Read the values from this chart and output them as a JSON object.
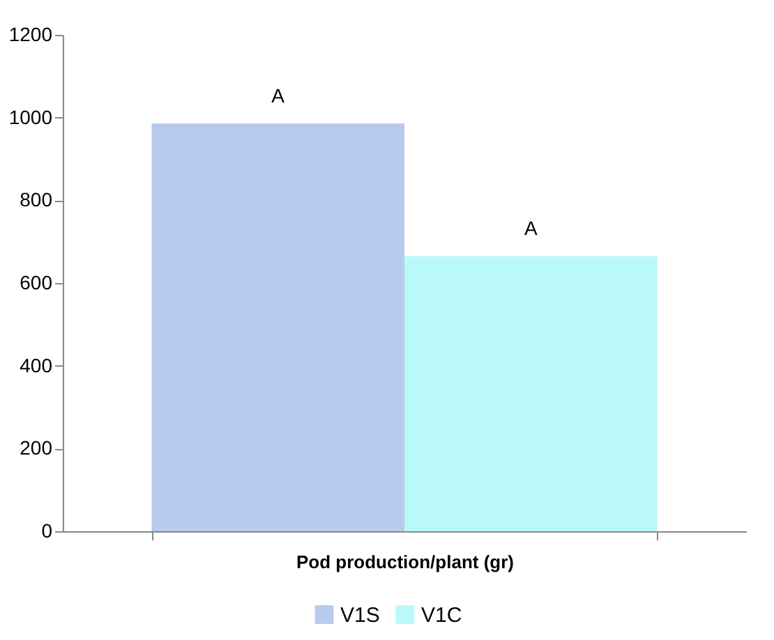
{
  "chart_data": {
    "type": "bar",
    "categories": [
      "Pod production/plant (gr)"
    ],
    "series": [
      {
        "name": "V1S",
        "color": "#b8cbee",
        "values": [
          986
        ],
        "value_labels": [
          "A"
        ]
      },
      {
        "name": "V1C",
        "color": "#b9f9f7",
        "values": [
          665
        ],
        "value_labels": [
          "A"
        ]
      }
    ],
    "ylim": [
      0,
      1200
    ],
    "yticks": [
      0,
      200,
      400,
      600,
      800,
      1000,
      1200
    ],
    "grid": false,
    "legend": "bottom"
  }
}
